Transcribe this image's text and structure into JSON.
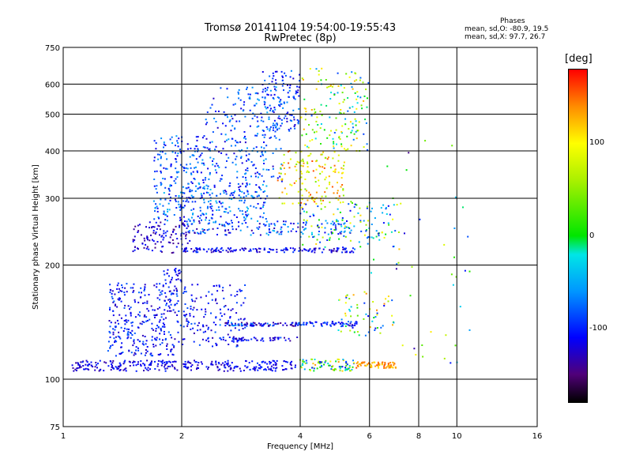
{
  "chart_data": {
    "type": "scatter",
    "title": "Tromsø 20141104 19:54:00-19:55:43",
    "subtitle": "RwPretec (8p)",
    "xlabel": "Frequency [MHz]",
    "ylabel": "Stationary phase Virtual Height [km]",
    "xscale": "log",
    "yscale": "log",
    "xlim": [
      1,
      16
    ],
    "ylim": [
      75,
      750
    ],
    "x_ticks": [
      1,
      2,
      4,
      6,
      8,
      10,
      16
    ],
    "x_tick_labels": [
      "1",
      "2",
      "4",
      "6",
      "8",
      "10",
      "16"
    ],
    "y_ticks": [
      75,
      100,
      200,
      300,
      400,
      500,
      600,
      750
    ],
    "y_tick_labels": [
      "75",
      "100",
      "200",
      "300",
      "400",
      "500",
      "600",
      "750"
    ],
    "grid": true,
    "stats": {
      "title": "Phases",
      "line_o": "mean, sd,O: -80.9, 19.5",
      "line_x": "mean, sd,X:  97.7, 26.7"
    },
    "colorbar": {
      "label": "[deg]",
      "ticks": [
        {
          "value": 100,
          "label": "100"
        },
        {
          "value": 0,
          "label": "0"
        },
        {
          "value": -100,
          "label": "-100"
        }
      ],
      "range": [
        -180,
        180
      ]
    },
    "clusters": [
      {
        "xmin": 1.05,
        "xmax": 2.9,
        "ymin": 105,
        "ymax": 112,
        "cmin": -140,
        "cmax": -95,
        "n": 220
      },
      {
        "xmin": 2.9,
        "xmax": 3.9,
        "ymin": 105,
        "ymax": 112,
        "cmin": -130,
        "cmax": -90,
        "n": 70
      },
      {
        "xmin": 4.0,
        "xmax": 5.5,
        "ymin": 105,
        "ymax": 113,
        "cmin": -110,
        "cmax": 140,
        "n": 90
      },
      {
        "xmin": 5.5,
        "xmax": 7.0,
        "ymin": 107,
        "ymax": 111,
        "cmin": 110,
        "cmax": 160,
        "n": 70
      },
      {
        "xmin": 1.3,
        "xmax": 2.0,
        "ymin": 115,
        "ymax": 180,
        "cmin": -135,
        "cmax": -75,
        "n": 320
      },
      {
        "xmin": 1.8,
        "xmax": 2.0,
        "ymin": 180,
        "ymax": 198,
        "cmin": -130,
        "cmax": -90,
        "n": 25
      },
      {
        "xmin": 2.0,
        "xmax": 2.9,
        "ymin": 122,
        "ymax": 178,
        "cmin": -135,
        "cmax": -80,
        "n": 150
      },
      {
        "xmin": 2.5,
        "xmax": 4.0,
        "ymin": 138,
        "ymax": 141,
        "cmin": -150,
        "cmax": -60,
        "n": 90
      },
      {
        "xmin": 2.5,
        "xmax": 4.0,
        "ymin": 126,
        "ymax": 129,
        "cmin": -140,
        "cmax": -80,
        "n": 50
      },
      {
        "xmin": 4.0,
        "xmax": 5.6,
        "ymin": 138,
        "ymax": 142,
        "cmin": -130,
        "cmax": -70,
        "n": 60
      },
      {
        "xmin": 5.0,
        "xmax": 7.0,
        "ymin": 130,
        "ymax": 170,
        "cmin": -120,
        "cmax": 150,
        "n": 60
      },
      {
        "xmin": 1.5,
        "xmax": 2.1,
        "ymin": 215,
        "ymax": 260,
        "cmin": -150,
        "cmax": -95,
        "n": 110
      },
      {
        "xmin": 2.0,
        "xmax": 5.5,
        "ymin": 216,
        "ymax": 222,
        "cmin": -140,
        "cmax": -90,
        "n": 150
      },
      {
        "xmin": 2.0,
        "xmax": 5.5,
        "ymin": 240,
        "ymax": 262,
        "cmin": -140,
        "cmax": -40,
        "n": 160
      },
      {
        "xmin": 1.7,
        "xmax": 3.3,
        "ymin": 262,
        "ymax": 330,
        "cmin": -125,
        "cmax": -40,
        "n": 280
      },
      {
        "xmin": 1.7,
        "xmax": 2.3,
        "ymin": 330,
        "ymax": 440,
        "cmin": -120,
        "cmax": -55,
        "n": 120
      },
      {
        "xmin": 2.3,
        "xmax": 3.6,
        "ymin": 330,
        "ymax": 590,
        "cmin": -130,
        "cmax": -50,
        "n": 240
      },
      {
        "xmin": 3.2,
        "xmax": 4.0,
        "ymin": 450,
        "ymax": 650,
        "cmin": -130,
        "cmax": -60,
        "n": 120
      },
      {
        "xmin": 3.5,
        "xmax": 5.2,
        "ymin": 290,
        "ymax": 400,
        "cmin": 40,
        "cmax": 160,
        "n": 150
      },
      {
        "xmin": 4.0,
        "xmax": 6.0,
        "ymin": 400,
        "ymax": 660,
        "cmin": -90,
        "cmax": 130,
        "n": 160
      },
      {
        "xmin": 4.0,
        "xmax": 7.2,
        "ymin": 220,
        "ymax": 295,
        "cmin": -120,
        "cmax": 120,
        "n": 130
      },
      {
        "xmin": 6.0,
        "xmax": 11.0,
        "ymin": 110,
        "ymax": 440,
        "cmin": -150,
        "cmax": 110,
        "n": 45
      }
    ]
  }
}
